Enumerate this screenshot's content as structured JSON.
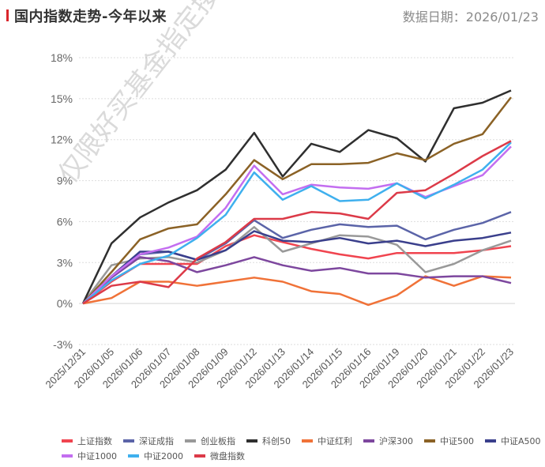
{
  "header": {
    "title": "国内指数走势-今年以来",
    "date_label": "数据日期：2026/01/23"
  },
  "watermark": "仅限好买基金指定接收",
  "chart_data": {
    "type": "line",
    "title": "国内指数走势-今年以来",
    "xlabel": "",
    "ylabel": "",
    "ylim": [
      -3,
      18
    ],
    "yticks": [
      -3,
      0,
      3,
      6,
      9,
      12,
      15,
      18
    ],
    "ytick_labels": [
      "-3%",
      "0%",
      "3%",
      "6%",
      "9%",
      "12%",
      "15%",
      "18%"
    ],
    "grid": true,
    "legend_position": "bottom",
    "x": [
      "2025/12/31",
      "2026/01/05",
      "2026/01/06",
      "2026/01/07",
      "2026/01/08",
      "2026/01/09",
      "2026/01/12",
      "2026/01/13",
      "2026/01/14",
      "2026/01/15",
      "2026/01/16",
      "2026/01/19",
      "2026/01/20",
      "2026/01/21",
      "2026/01/22",
      "2026/01/23"
    ],
    "series": [
      {
        "name": "上证指数",
        "color": "#f0444f",
        "values": [
          0,
          1.6,
          2.9,
          2.9,
          2.9,
          4.2,
          5.0,
          4.5,
          4.0,
          3.6,
          3.3,
          3.7,
          3.7,
          3.7,
          3.9,
          4.2
        ]
      },
      {
        "name": "深证成指",
        "color": "#5b64a8",
        "values": [
          0,
          2.0,
          3.6,
          3.8,
          3.2,
          4.4,
          6.1,
          4.8,
          5.4,
          5.8,
          5.6,
          5.7,
          4.7,
          5.4,
          5.9,
          6.7
        ]
      },
      {
        "name": "创业板指",
        "color": "#999999",
        "values": [
          0,
          2.8,
          3.3,
          3.4,
          3.0,
          3.9,
          5.6,
          3.8,
          4.4,
          5.0,
          4.9,
          4.3,
          2.3,
          2.9,
          3.9,
          4.6
        ]
      },
      {
        "name": "科创50",
        "color": "#2f2f2f",
        "values": [
          0,
          4.4,
          6.3,
          7.4,
          8.3,
          9.8,
          12.5,
          9.3,
          11.7,
          11.1,
          12.7,
          12.1,
          10.4,
          14.3,
          14.7,
          15.6
        ]
      },
      {
        "name": "中证红利",
        "color": "#f07238",
        "values": [
          0,
          0.4,
          1.6,
          1.6,
          1.3,
          1.6,
          1.9,
          1.6,
          0.9,
          0.7,
          -0.1,
          0.6,
          2.0,
          1.3,
          2.0,
          1.9
        ]
      },
      {
        "name": "沪深300",
        "color": "#7d479e",
        "values": [
          0,
          1.9,
          3.4,
          3.1,
          2.3,
          2.8,
          3.4,
          2.8,
          2.4,
          2.6,
          2.2,
          2.2,
          1.9,
          2.0,
          2.0,
          1.5
        ]
      },
      {
        "name": "中证500",
        "color": "#8b6226",
        "values": [
          0,
          2.3,
          4.7,
          5.5,
          5.8,
          8.0,
          10.5,
          9.1,
          10.2,
          10.2,
          10.3,
          11.0,
          10.5,
          11.7,
          12.4,
          15.1
        ]
      },
      {
        "name": "中证A500",
        "color": "#3a3f8c",
        "values": [
          0,
          2.0,
          3.8,
          3.8,
          3.2,
          3.9,
          5.3,
          4.6,
          4.5,
          4.8,
          4.4,
          4.6,
          4.2,
          4.6,
          4.8,
          5.2
        ]
      },
      {
        "name": "中证1000",
        "color": "#c36ef0",
        "values": [
          0,
          2.0,
          3.6,
          4.1,
          4.9,
          7.0,
          10.1,
          8.0,
          8.7,
          8.5,
          8.4,
          8.8,
          7.8,
          8.6,
          9.4,
          11.5
        ]
      },
      {
        "name": "中证2000",
        "color": "#3fb0ee",
        "values": [
          0,
          1.7,
          2.9,
          3.5,
          4.8,
          6.5,
          9.6,
          7.6,
          8.6,
          7.5,
          7.6,
          8.8,
          7.7,
          8.7,
          9.8,
          11.8
        ]
      },
      {
        "name": "微盘指数",
        "color": "#dc3a48",
        "values": [
          0,
          1.3,
          1.6,
          1.2,
          3.3,
          4.5,
          6.2,
          6.2,
          6.7,
          6.6,
          6.2,
          8.1,
          8.3,
          9.5,
          10.8,
          11.9
        ]
      }
    ]
  }
}
